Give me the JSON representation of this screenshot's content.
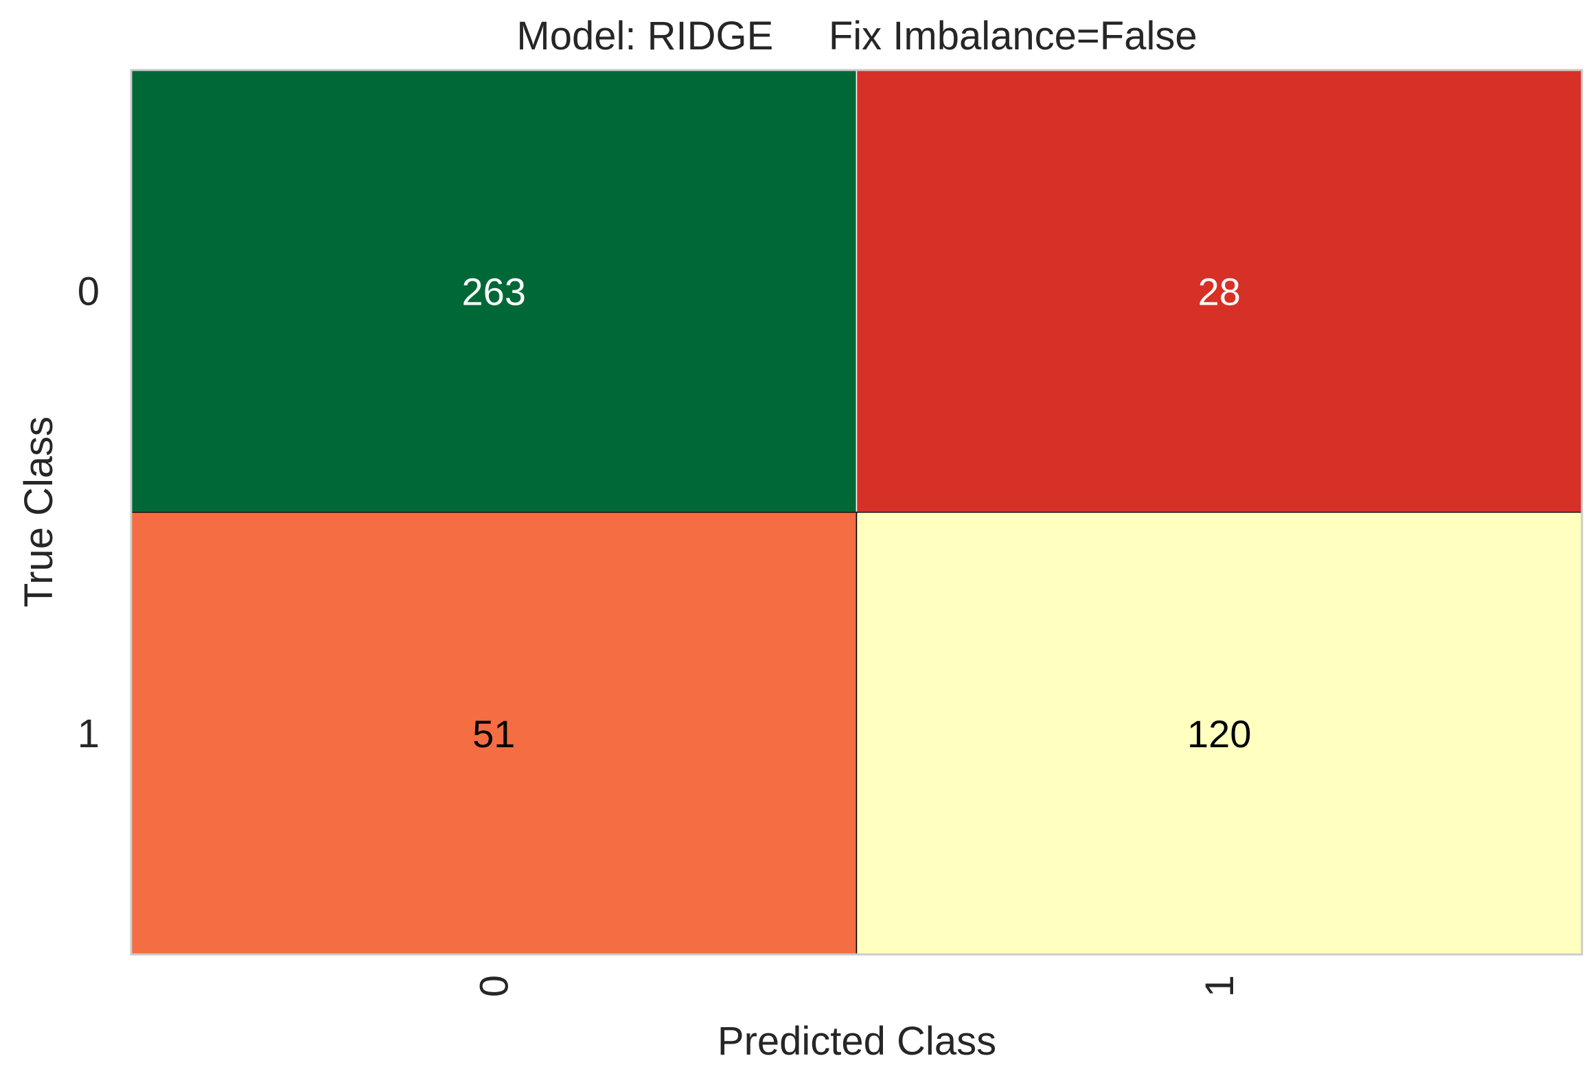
{
  "chart_data": {
    "type": "heatmap",
    "title": "Model: RIDGE     Fix Imbalance=False",
    "xlabel": "Predicted Class",
    "ylabel": "True Class",
    "x_categories": [
      "0",
      "1"
    ],
    "y_categories": [
      "0",
      "1"
    ],
    "values": [
      [
        263,
        28
      ],
      [
        51,
        120
      ]
    ],
    "colormap": "RdYlGn",
    "cell_colors": [
      [
        "#006837",
        "#d73027"
      ],
      [
        "#f46d43",
        "#ffffbf"
      ]
    ],
    "cell_text_colors": [
      [
        "#ffffff",
        "#ffffff"
      ],
      [
        "#000000",
        "#000000"
      ]
    ],
    "grid": false,
    "colorbar": false
  }
}
